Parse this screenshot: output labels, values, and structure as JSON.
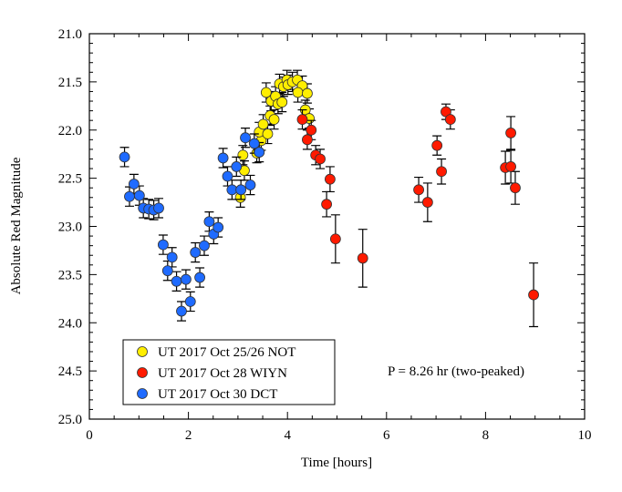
{
  "chart_data": {
    "type": "scatter",
    "xlabel": "Time [hours]",
    "ylabel": "Absolute Red Magnitude",
    "xlim": [
      0,
      10
    ],
    "ylim": [
      25.0,
      21.0
    ],
    "y_inverted": true,
    "xticks": [
      "0",
      "2",
      "4",
      "6",
      "8",
      "10"
    ],
    "yticks": [
      "21.0",
      "21.5",
      "22.0",
      "22.5",
      "23.0",
      "23.5",
      "24.0",
      "24.5",
      "25.0"
    ],
    "legend_position": "bottom-left",
    "annotation": "P = 8.26 hr (two-peaked)",
    "series": [
      {
        "name": "UT 2017 Oct 25/26 NOT",
        "color": "#ffee00",
        "points": [
          [
            3.1,
            22.26,
            0.1
          ],
          [
            3.13,
            22.42,
            0.1
          ],
          [
            3.05,
            22.7,
            0.1
          ],
          [
            3.38,
            22.24,
            0.1
          ],
          [
            3.47,
            22.11,
            0.1
          ],
          [
            3.43,
            22.02,
            0.1
          ],
          [
            3.6,
            22.04,
            0.1
          ],
          [
            3.51,
            21.94,
            0.1
          ],
          [
            3.65,
            21.85,
            0.1
          ],
          [
            3.73,
            21.89,
            0.1
          ],
          [
            3.57,
            21.61,
            0.1
          ],
          [
            3.67,
            21.7,
            0.1
          ],
          [
            3.76,
            21.65,
            0.1
          ],
          [
            3.81,
            21.73,
            0.1
          ],
          [
            3.89,
            21.71,
            0.1
          ],
          [
            3.84,
            21.52,
            0.1
          ],
          [
            3.92,
            21.55,
            0.1
          ],
          [
            3.99,
            21.48,
            0.1
          ],
          [
            4.01,
            21.53,
            0.1
          ],
          [
            4.1,
            21.5,
            0.1
          ],
          [
            4.2,
            21.48,
            0.1
          ],
          [
            4.3,
            21.54,
            0.1
          ],
          [
            4.21,
            21.61,
            0.1
          ],
          [
            4.4,
            21.62,
            0.1
          ],
          [
            4.36,
            21.79,
            0.1
          ],
          [
            4.44,
            21.88,
            0.1
          ]
        ]
      },
      {
        "name": "UT 2017 Oct 28 WIYN",
        "color": "#ff1a00",
        "points": [
          [
            4.3,
            21.89,
            0.1
          ],
          [
            4.48,
            22.0,
            0.1
          ],
          [
            4.4,
            22.1,
            0.1
          ],
          [
            4.57,
            22.26,
            0.1
          ],
          [
            4.66,
            22.3,
            0.1
          ],
          [
            4.79,
            22.77,
            0.13
          ],
          [
            4.86,
            22.51,
            0.13
          ],
          [
            4.97,
            23.13,
            0.25
          ],
          [
            5.52,
            23.33,
            0.3
          ],
          [
            6.65,
            22.62,
            0.13
          ],
          [
            6.83,
            22.75,
            0.2
          ],
          [
            7.02,
            22.16,
            0.1
          ],
          [
            7.11,
            22.43,
            0.13
          ],
          [
            7.2,
            21.81,
            0.08
          ],
          [
            7.29,
            21.89,
            0.1
          ],
          [
            8.4,
            22.39,
            0.17
          ],
          [
            8.51,
            22.38,
            0.17
          ],
          [
            8.51,
            22.03,
            0.17
          ],
          [
            8.6,
            22.6,
            0.17
          ],
          [
            8.97,
            23.71,
            0.33
          ]
        ]
      },
      {
        "name": "UT 2017 Oct 30 DCT",
        "color": "#1f6bff",
        "points": [
          [
            0.71,
            22.28,
            0.1
          ],
          [
            0.9,
            22.56,
            0.1
          ],
          [
            0.81,
            22.69,
            0.1
          ],
          [
            1.01,
            22.68,
            0.1
          ],
          [
            1.09,
            22.81,
            0.1
          ],
          [
            1.2,
            22.82,
            0.1
          ],
          [
            1.3,
            22.83,
            0.1
          ],
          [
            1.4,
            22.81,
            0.1
          ],
          [
            1.49,
            23.19,
            0.1
          ],
          [
            1.67,
            23.32,
            0.1
          ],
          [
            1.58,
            23.46,
            0.1
          ],
          [
            1.76,
            23.57,
            0.1
          ],
          [
            1.95,
            23.55,
            0.1
          ],
          [
            1.86,
            23.88,
            0.1
          ],
          [
            2.04,
            23.78,
            0.1
          ],
          [
            2.23,
            23.53,
            0.1
          ],
          [
            2.14,
            23.27,
            0.1
          ],
          [
            2.32,
            23.2,
            0.1
          ],
          [
            2.51,
            23.08,
            0.1
          ],
          [
            2.42,
            22.95,
            0.1
          ],
          [
            2.6,
            23.01,
            0.1
          ],
          [
            2.7,
            22.29,
            0.1
          ],
          [
            2.79,
            22.48,
            0.1
          ],
          [
            2.88,
            22.62,
            0.1
          ],
          [
            2.97,
            22.38,
            0.1
          ],
          [
            3.06,
            22.62,
            0.1
          ],
          [
            3.25,
            22.57,
            0.1
          ],
          [
            3.15,
            22.08,
            0.1
          ],
          [
            3.33,
            22.14,
            0.1
          ],
          [
            3.43,
            22.23,
            0.1
          ]
        ]
      }
    ]
  }
}
